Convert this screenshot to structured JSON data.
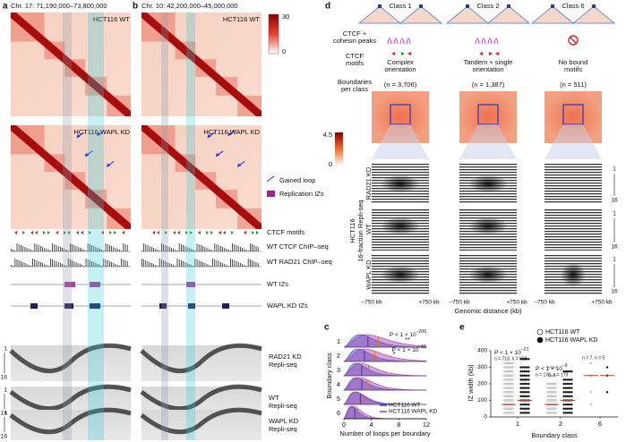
{
  "figure": {
    "a": {
      "label": "a",
      "region": "Chr. 17: 71,190,000–73,800,000",
      "top": "HCT116 WT",
      "bottom": "HCT116 WAPL KD"
    },
    "b": {
      "label": "b",
      "region": "Chr. 10: 42,200,000–45,000,000",
      "top": "HCT116 WT",
      "bottom": "HCT116 WAPL KD",
      "colorbar_max": 30,
      "colorbar_min": 0
    },
    "legend": {
      "gained_loop": "Gained loop",
      "izs": "Replication IZs"
    },
    "tracks": [
      "CTCF motifs",
      "WT CTCF ChIP–seq",
      "WT RAD21 ChIP–seq",
      "WT IZs",
      "WAPL KD IZs"
    ],
    "repli": [
      [
        "RAD21 KD",
        "Repli-seq"
      ],
      [
        "WT",
        "Repli-seq"
      ],
      [
        "WAPL KD",
        "Repli-seq"
      ]
    ],
    "fraction_first": 1,
    "fraction_last": 16,
    "d": {
      "label": "d",
      "classes": [
        {
          "name": "Class 1",
          "motifs": [
            "Complex",
            "orientation"
          ],
          "n": "(n = 3,706)"
        },
        {
          "name": "Class 2",
          "motifs": [
            "Tandem + single",
            "orientation"
          ],
          "n": "(n = 1,387)"
        },
        {
          "name": "Class 6",
          "motifs": [
            "No bound",
            "motifs"
          ],
          "n": "(n = 511)"
        }
      ],
      "row_labels": [
        [
          "CTCF +",
          "cohesin peaks"
        ],
        [
          "CTCF",
          "motifs"
        ],
        [
          "Boundaries",
          "per class"
        ]
      ],
      "colorbar_max": 4.5,
      "colorbar_min": 0,
      "repli_title": [
        "HCT116",
        "16-fraction Repli-seq"
      ],
      "repli_rows": [
        "RAD21 KD",
        "WT",
        "WAPL KD"
      ],
      "x_left": "−750 kb",
      "x_right": "+750 kb",
      "x_label": "Genomic distance (kb)"
    }
  },
  "chart_data": [
    {
      "type": "density",
      "label": "c",
      "ylabel": "Boundary class",
      "xlabel": "Number of loops per boundary",
      "categories": [
        "1",
        "2",
        "3",
        "4",
        "5",
        "6"
      ],
      "xlim": [
        0,
        12
      ],
      "xticks": [
        0,
        4,
        8,
        12
      ],
      "series": [
        {
          "name": "HCT116 WT",
          "color": "#2a46c8",
          "values": [
            3.5,
            3,
            2.6,
            2.6,
            2.4,
            1.6
          ]
        },
        {
          "name": "HCT116 WAPL KD",
          "color": "#a03aa8",
          "values": [
            5,
            4.5,
            3.6,
            3.4,
            2.6,
            2
          ]
        }
      ],
      "annotations": [
        {
          "text": "P < 1 × 10",
          "exp": "−206"
        },
        {
          "text": "P < 1 × 10",
          "exp": "−15"
        },
        "**",
        "*"
      ]
    },
    {
      "type": "scatter",
      "label": "e",
      "ylabel": "IZ width (kb)",
      "xlabel": "Boundary class",
      "categories": [
        "1",
        "2",
        "6"
      ],
      "ylim": [
        0,
        400
      ],
      "yticks": [
        0,
        100,
        200,
        300,
        400
      ],
      "series": [
        {
          "name": "HCT116 WT",
          "points": [
            [
              25,
              50,
              75,
              100,
              125,
              150,
              175,
              200,
              225,
              250,
              275,
              300,
              325
            ],
            [
              25,
              50,
              75,
              100,
              125,
              150,
              175,
              200,
              250,
              300
            ],
            [
              75,
              150,
              250,
              325
            ]
          ],
          "medians": [
            75,
            75,
            250
          ]
        },
        {
          "name": "HCT116 WAPL KD",
          "points": [
            [
              25,
              50,
              75,
              100,
              125,
              150,
              175,
              200,
              225,
              250,
              275,
              300,
              350
            ],
            [
              25,
              50,
              75,
              100,
              125,
              150,
              175,
              200,
              225,
              275
            ],
            [
              150,
              250,
              300
            ]
          ],
          "medians": [
            100,
            100,
            250
          ]
        }
      ],
      "median_color": "#e03020",
      "annotations": [
        {
          "text": "P < 1 × 10",
          "exp": "−21",
          "n": "n = 713, n = 668"
        },
        {
          "text": "P < 1 × 10",
          "exp": "−9",
          "n": "n = 178, n = 173"
        },
        {
          "n": "n = 7, n = 5"
        }
      ]
    }
  ]
}
